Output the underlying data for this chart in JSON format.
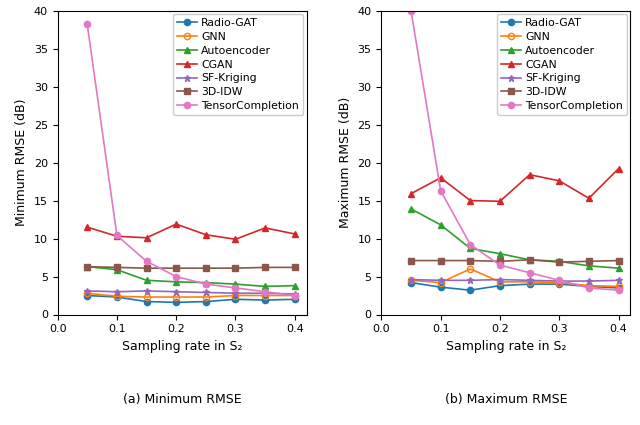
{
  "x": [
    0.05,
    0.1,
    0.15,
    0.2,
    0.25,
    0.3,
    0.35,
    0.4
  ],
  "methods": [
    "Radio-GAT",
    "GNN",
    "Autoencoder",
    "CGAN",
    "SF-Kriging",
    "3D-IDW",
    "TensorCompletion"
  ],
  "colors": [
    "#1f77b4",
    "#ff7f0e",
    "#2ca02c",
    "#d62728",
    "#9467bd",
    "#8c564b",
    "#e377c2"
  ],
  "markers": [
    "o",
    "o",
    "^",
    "^",
    "*",
    "s",
    "o"
  ],
  "min_rmse": {
    "Radio-GAT": [
      2.5,
      2.3,
      1.7,
      1.6,
      1.7,
      2.0,
      1.9,
      2.0
    ],
    "GNN": [
      2.8,
      2.4,
      2.3,
      2.3,
      2.3,
      2.5,
      2.5,
      2.5
    ],
    "Autoencoder": [
      6.3,
      5.9,
      4.5,
      4.3,
      4.2,
      4.0,
      3.7,
      3.8
    ],
    "CGAN": [
      11.5,
      10.3,
      10.1,
      11.9,
      10.5,
      9.9,
      11.4,
      10.6
    ],
    "SF-Kriging": [
      3.1,
      3.0,
      3.1,
      3.0,
      2.9,
      2.8,
      2.8,
      2.7
    ],
    "3D-IDW": [
      6.3,
      6.2,
      6.1,
      6.1,
      6.1,
      6.1,
      6.2,
      6.2
    ],
    "TensorCompletion": [
      38.2,
      10.4,
      7.0,
      5.0,
      4.0,
      3.5,
      3.0,
      2.5
    ]
  },
  "max_rmse": {
    "Radio-GAT": [
      4.2,
      3.6,
      3.2,
      3.8,
      4.0,
      4.0,
      3.7,
      3.5
    ],
    "GNN": [
      4.5,
      4.2,
      6.0,
      4.3,
      4.3,
      4.2,
      3.8,
      3.7
    ],
    "Autoencoder": [
      13.9,
      11.8,
      8.7,
      8.0,
      7.2,
      7.0,
      6.4,
      6.1
    ],
    "CGAN": [
      15.9,
      18.0,
      15.0,
      14.9,
      18.4,
      17.6,
      15.3,
      19.2
    ],
    "SF-Kriging": [
      4.6,
      4.5,
      4.5,
      4.6,
      4.5,
      4.4,
      4.4,
      4.5
    ],
    "3D-IDW": [
      7.1,
      7.1,
      7.1,
      7.0,
      7.2,
      6.9,
      7.0,
      7.1
    ],
    "TensorCompletion": [
      40.0,
      16.3,
      9.2,
      6.5,
      5.5,
      4.5,
      3.5,
      3.2
    ]
  },
  "ylim": [
    0,
    40
  ],
  "yticks": [
    0,
    5,
    10,
    15,
    20,
    25,
    30,
    35,
    40
  ],
  "xticks": [
    0.0,
    0.1,
    0.2,
    0.3,
    0.4
  ],
  "xlabel": "Sampling rate in S₂",
  "ylabel_left": "Minimum RMSE (dB)",
  "ylabel_right": "Maximum RMSE (dB)",
  "caption_left": "(a) Minimum RMSE",
  "caption_right": "(b) Maximum RMSE",
  "fig_width": 6.4,
  "fig_height": 4.25,
  "fig_dpi": 100
}
